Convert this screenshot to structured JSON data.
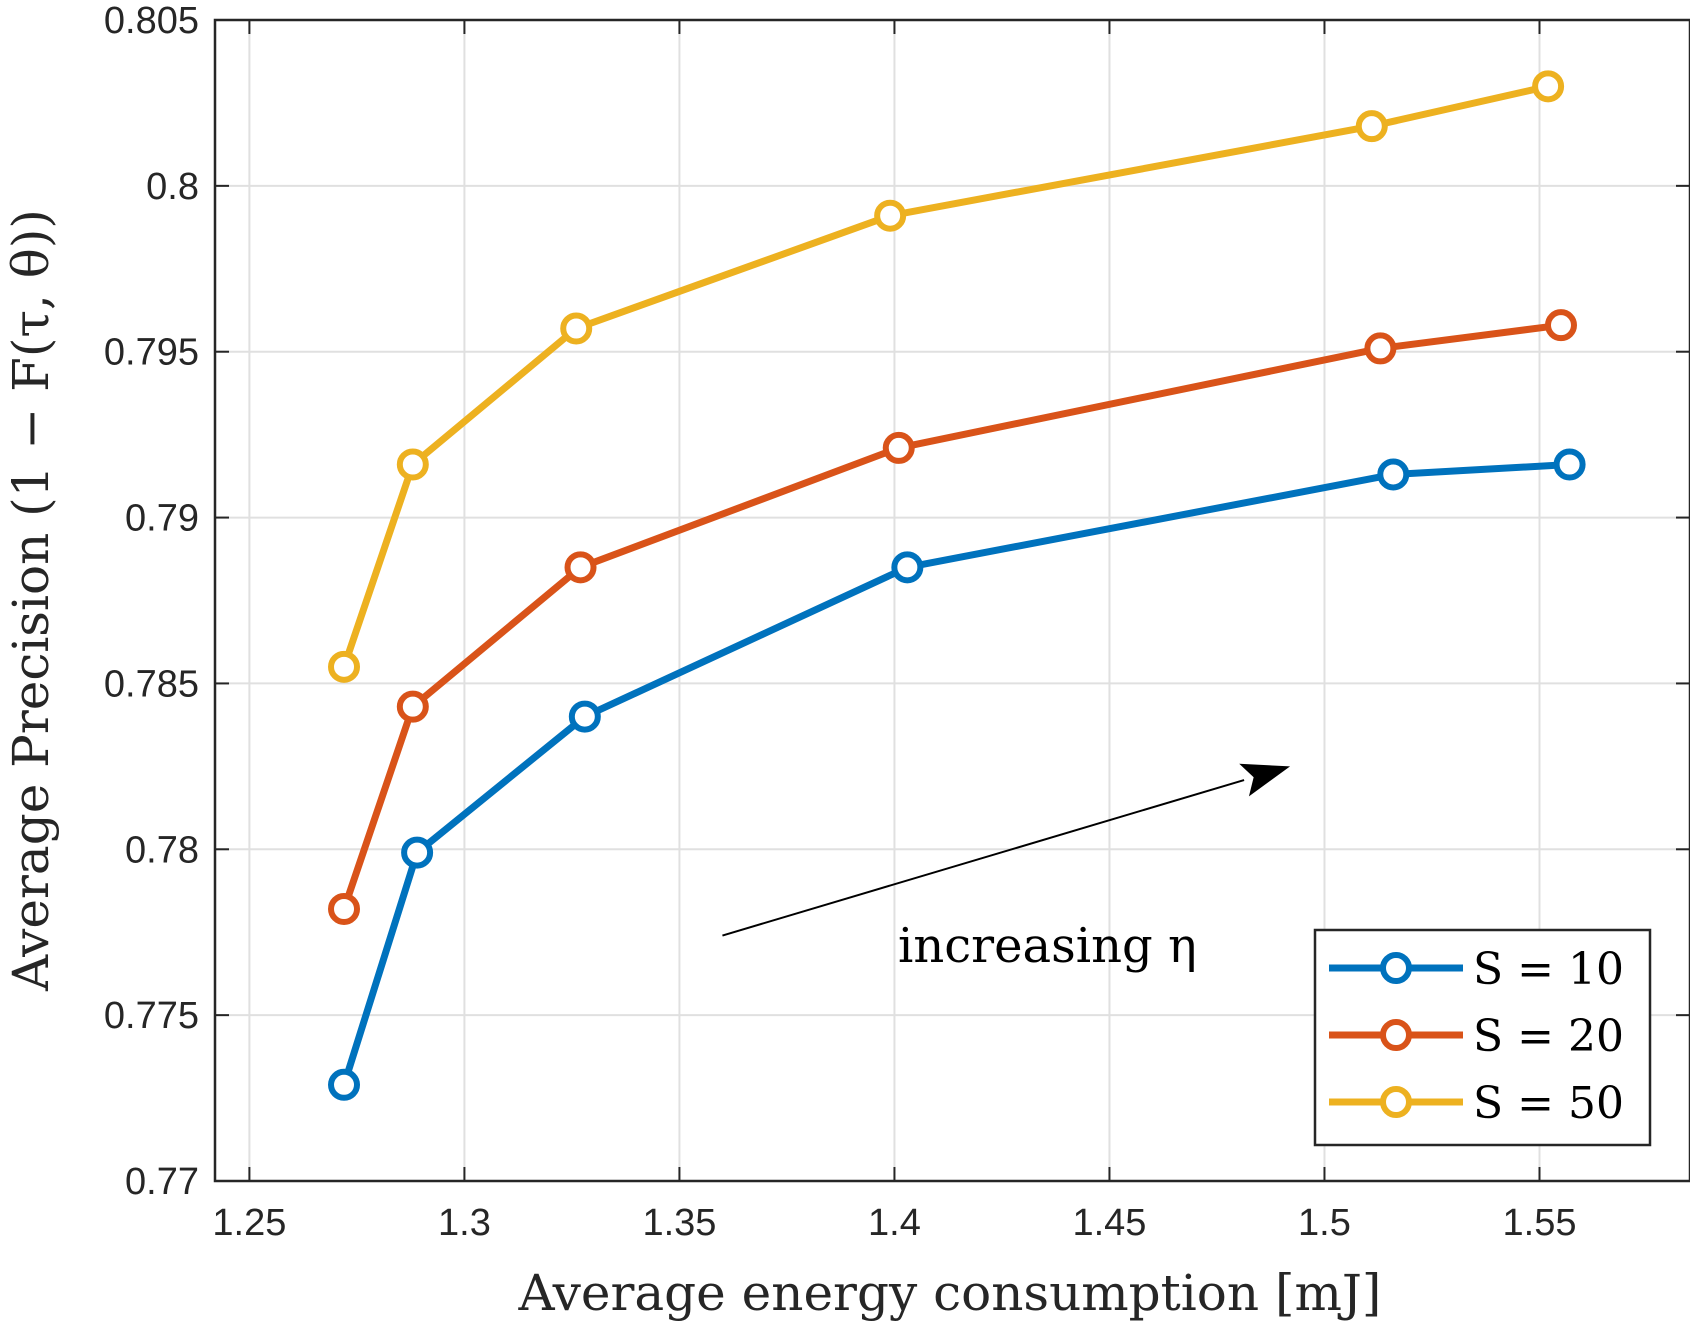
{
  "chart_data": {
    "type": "line",
    "title": "",
    "xlabel": "Average energy consumption [mJ]",
    "ylabel": "Average Precision (1 − F(τ, θ))",
    "xlim": [
      1.242,
      1.585
    ],
    "ylim": [
      0.77,
      0.805
    ],
    "xticks": [
      1.25,
      1.3,
      1.35,
      1.4,
      1.45,
      1.5,
      1.55
    ],
    "xtick_labels": [
      "1.25",
      "1.3",
      "1.35",
      "1.4",
      "1.45",
      "1.5",
      "1.55"
    ],
    "yticks": [
      0.77,
      0.775,
      0.78,
      0.785,
      0.79,
      0.795,
      0.8,
      0.805
    ],
    "ytick_labels": [
      "0.77",
      "0.775",
      "0.78",
      "0.785",
      "0.79",
      "0.795",
      "0.8",
      "0.805"
    ],
    "grid": true,
    "legend_position": "bottom-right",
    "series": [
      {
        "name": "S = 10",
        "color": "#0072BD",
        "x": [
          1.272,
          1.289,
          1.328,
          1.403,
          1.516,
          1.557
        ],
        "y": [
          0.7729,
          0.7799,
          0.784,
          0.7885,
          0.7913,
          0.7916
        ]
      },
      {
        "name": "S = 20",
        "color": "#D95319",
        "x": [
          1.272,
          1.288,
          1.327,
          1.401,
          1.513,
          1.555
        ],
        "y": [
          0.7782,
          0.7843,
          0.7885,
          0.7921,
          0.7951,
          0.7958
        ]
      },
      {
        "name": "S = 50",
        "color": "#EDB120",
        "x": [
          1.272,
          1.288,
          1.326,
          1.399,
          1.511,
          1.552
        ],
        "y": [
          0.7855,
          0.7916,
          0.7957,
          0.7991,
          0.8018,
          0.803
        ]
      }
    ],
    "annotation": {
      "text": "increasing η",
      "arrow_from": [
        1.36,
        0.7774
      ],
      "arrow_to": [
        1.492,
        0.7825
      ]
    }
  }
}
